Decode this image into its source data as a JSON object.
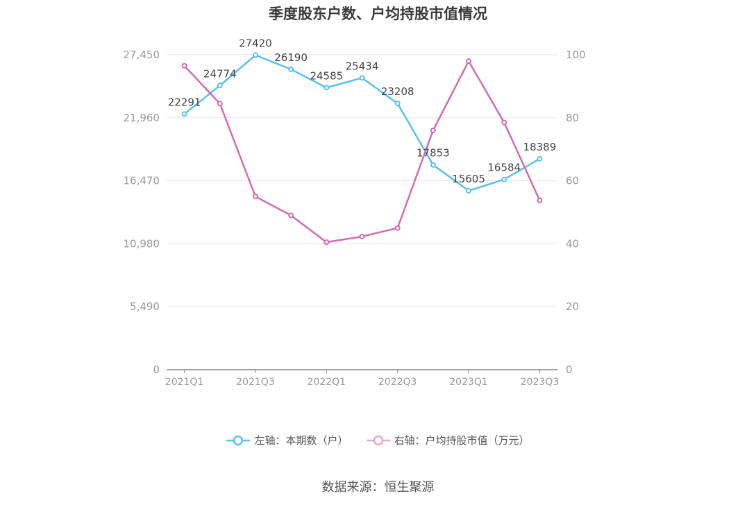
{
  "chart_data": {
    "type": "line",
    "title": "季度股东户数、户均持股市值情况",
    "categories": [
      "2021Q1",
      "2021Q2",
      "2021Q3",
      "2021Q4",
      "2022Q1",
      "2022Q2",
      "2022Q3",
      "2022Q4",
      "2023Q1",
      "2023Q2",
      "2023Q3"
    ],
    "x_tick_labels": [
      "2021Q1",
      "2021Q3",
      "2022Q1",
      "2022Q3",
      "2023Q1",
      "2023Q3"
    ],
    "series": [
      {
        "name": "左轴：本期数（户）",
        "axis": "left",
        "color": "#5bc0eb",
        "values": [
          22291,
          24774,
          27420,
          26190,
          24585,
          25434,
          23208,
          17853,
          15605,
          16584,
          18389
        ],
        "data_labels": [
          "22291",
          "24774",
          "27420",
          "26190",
          "24585",
          "25434",
          "23208",
          "17853",
          "15605",
          "16584",
          "18389"
        ]
      },
      {
        "name": "右轴：户均持股市值（万元）",
        "axis": "right",
        "color": "#d46aac",
        "values": [
          96.5,
          84.5,
          55.0,
          49.0,
          40.5,
          42.3,
          45.0,
          76.0,
          98.0,
          78.5,
          53.8
        ]
      }
    ],
    "left_axis": {
      "ylim": [
        0,
        27450
      ],
      "ticks": [
        "0",
        "5,490",
        "10,980",
        "16,470",
        "21,960",
        "27,450"
      ]
    },
    "right_axis": {
      "ylim": [
        0,
        100
      ],
      "ticks": [
        "0",
        "20",
        "40",
        "60",
        "80",
        "100"
      ]
    },
    "grid": true,
    "legend_position": "bottom"
  },
  "source": "数据来源：恒生聚源"
}
